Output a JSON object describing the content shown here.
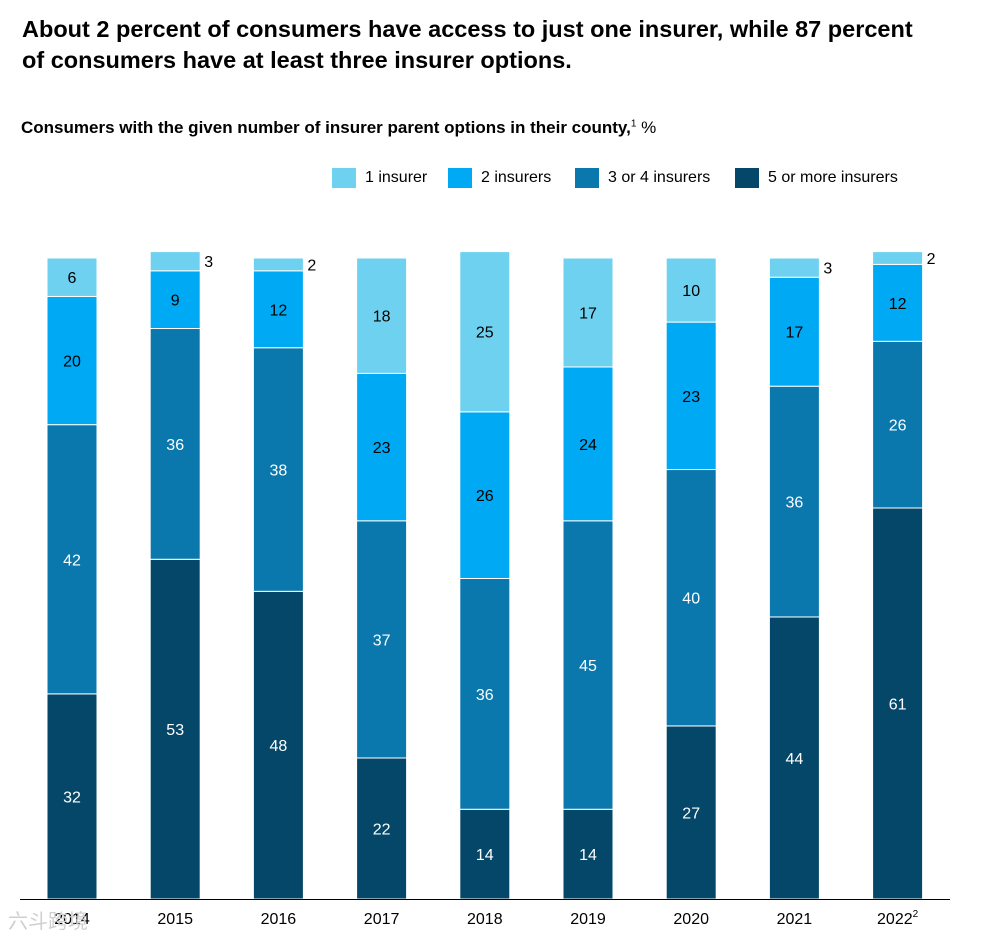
{
  "headline": "About 2 percent of consumers have access to just one insurer, while 87 percent of consumers have at least three insurer options.",
  "subtitle": {
    "text": "Consumers with the given number of insurer parent options in their county,",
    "footnote": "1",
    "unit": "%"
  },
  "legend": [
    {
      "label": "1 insurer",
      "color": "#6fd1f0"
    },
    {
      "label": "2 insurers",
      "color": "#00a9f4"
    },
    {
      "label": "3 or 4 insurers",
      "color": "#0b78ad"
    },
    {
      "label": "5 or more insurers",
      "color": "#054769"
    }
  ],
  "chart_data": {
    "type": "bar",
    "stacked": true,
    "title": "Consumers with the given number of insurer parent options in their county, %",
    "xlabel": "",
    "ylabel": "%",
    "ylim": [
      0,
      100
    ],
    "categories": [
      "2014",
      "2015",
      "2016",
      "2017",
      "2018",
      "2019",
      "2020",
      "2021",
      "2022"
    ],
    "category_footnotes": [
      "",
      "",
      "",
      "",
      "",
      "",
      "",
      "",
      "2"
    ],
    "series": [
      {
        "name": "5 or more insurers",
        "color": "#054769",
        "label_color": "#ffffff",
        "values": [
          32,
          53,
          48,
          22,
          14,
          14,
          27,
          44,
          61
        ]
      },
      {
        "name": "3 or 4 insurers",
        "color": "#0b78ad",
        "label_color": "#ffffff",
        "values": [
          42,
          36,
          38,
          37,
          36,
          45,
          40,
          36,
          26
        ]
      },
      {
        "name": "2 insurers",
        "color": "#00a9f4",
        "label_color": "#000000",
        "values": [
          20,
          9,
          12,
          23,
          26,
          24,
          23,
          17,
          12
        ]
      },
      {
        "name": "1 insurer",
        "color": "#6fd1f0",
        "label_color": "#000000",
        "values": [
          6,
          3,
          2,
          18,
          25,
          17,
          10,
          3,
          2
        ]
      }
    ]
  },
  "watermark": "六斗跨境"
}
